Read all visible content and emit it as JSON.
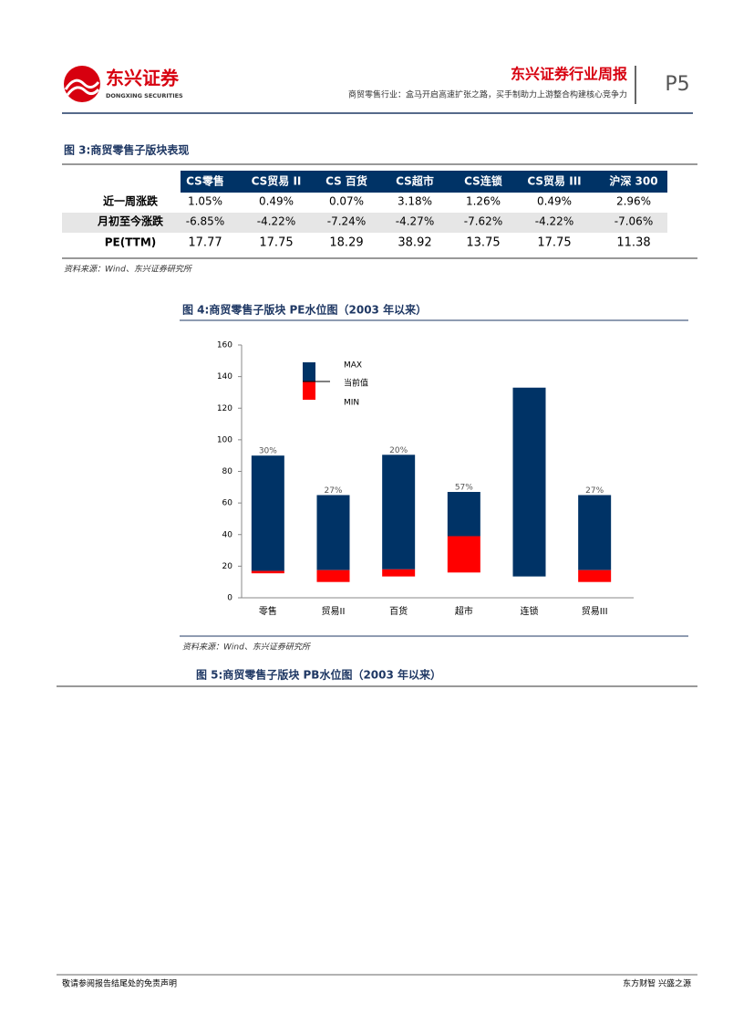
{
  "header": {
    "logo_cn": "东兴证券",
    "logo_en": "DONGXING SECURITIES",
    "title": "东兴证券行业周报",
    "subtitle": "商贸零售行业：盒马开启高速扩张之路，买手制助力上游整合构建核心竞争力",
    "page": "P5"
  },
  "table": {
    "title": "图 3:商贸零售子版块表现",
    "header": [
      "CS零售",
      "CS贸易 II",
      "CS 百货",
      "CS超市",
      "CS连锁",
      "CS贸易 III",
      "沪深 300"
    ],
    "rows": [
      [
        "近一周涨跌",
        "1.05%",
        "0.49%",
        "0.07%",
        "3.18%",
        "1.26%",
        "0.49%",
        "2.96%"
      ],
      [
        "月初至今涨跌",
        "-6.85%",
        "-4.22%",
        "-7.24%",
        "-4.27%",
        "-7.62%",
        "-4.22%",
        "-7.06%"
      ],
      [
        "PE(TTM)",
        "17.77",
        "17.75",
        "18.29",
        "38.92",
        "13.75",
        "17.75",
        "11.38"
      ]
    ],
    "source": "资料来源：Wind、东兴证券研究所"
  },
  "chart_data": {
    "type": "floating-bar",
    "title": "图 4:商贸零售子版块 PE水位图（2003 年以来）",
    "categories": [
      "零售",
      "贸易II",
      "百货",
      "超市",
      "连锁",
      "贸易III"
    ],
    "series": [
      {
        "name": "MAX",
        "color": "#003366",
        "values": [
          90,
          65,
          90.5,
          67,
          133,
          65
        ]
      },
      {
        "name": "当前值",
        "color": "#000000",
        "values": [
          17,
          17.5,
          18,
          39,
          13.5,
          17.5
        ]
      },
      {
        "name": "MIN",
        "color": "#ff0000",
        "values": [
          15.5,
          10,
          13.5,
          16,
          13.5,
          10
        ]
      }
    ],
    "percentile_labels": [
      "30%",
      "27%",
      "20%",
      "57%",
      null,
      "27%"
    ],
    "ylim": [
      0,
      160
    ],
    "yticks": [
      0,
      20,
      40,
      60,
      80,
      100,
      120,
      140,
      160
    ],
    "grid": false,
    "source": "资料来源：Wind、东兴证券研究所"
  },
  "figure5": {
    "title": "图 5:商贸零售子版块 PB水位图（2003 年以来）"
  },
  "footer": {
    "left": "敬请参阅报告结尾处的免责声明",
    "right": "东方财智 兴盛之源"
  }
}
